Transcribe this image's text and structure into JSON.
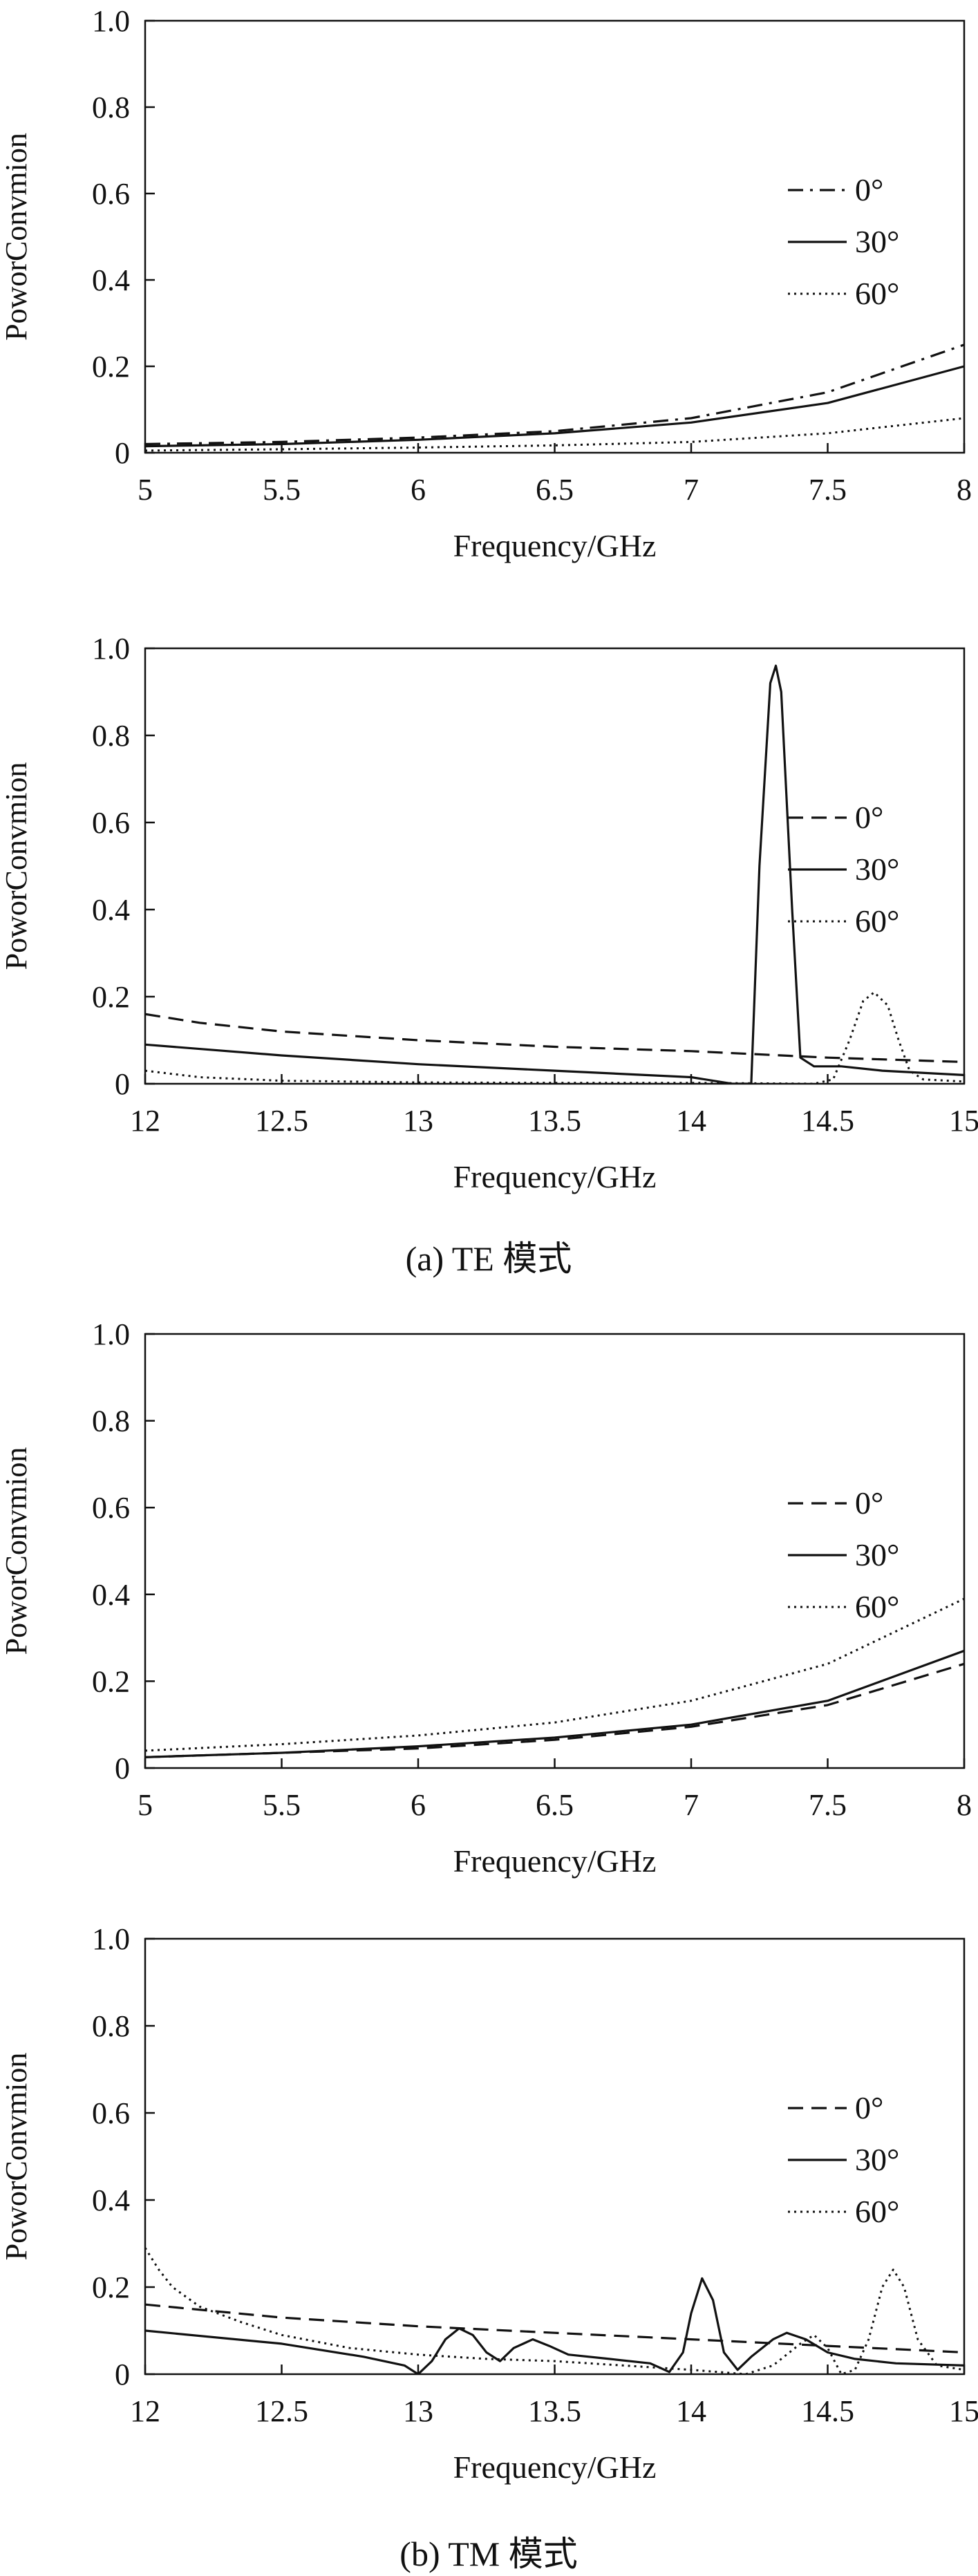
{
  "colors": {
    "line": "#111111",
    "frame": "#111111",
    "background": "#ffffff"
  },
  "captions": {
    "a": "(a) TE 模式",
    "b": "(b) TM 模式"
  },
  "chart_data": [
    {
      "type": "line",
      "xlabel": "Frequency/GHz",
      "ylabel": "PoworConvmion",
      "xlim": [
        5,
        8
      ],
      "ylim": [
        0,
        1
      ],
      "xticks": [
        "5",
        "5.5",
        "6",
        "6.5",
        "7",
        "7.5",
        "8"
      ],
      "yticks": [
        "0",
        "0.2",
        "0.4",
        "0.6",
        "0.8",
        "1.0"
      ],
      "legend_position": "right-middle",
      "grid": false,
      "series": [
        {
          "name": "0°",
          "style": "dashdot",
          "points": [
            [
              5,
              0.02
            ],
            [
              5.5,
              0.025
            ],
            [
              6,
              0.035
            ],
            [
              6.5,
              0.05
            ],
            [
              7,
              0.08
            ],
            [
              7.5,
              0.14
            ],
            [
              8,
              0.25
            ]
          ]
        },
        {
          "name": "30°",
          "style": "solid",
          "points": [
            [
              5,
              0.015
            ],
            [
              5.5,
              0.02
            ],
            [
              6,
              0.03
            ],
            [
              6.5,
              0.045
            ],
            [
              7,
              0.07
            ],
            [
              7.5,
              0.115
            ],
            [
              8,
              0.2
            ]
          ]
        },
        {
          "name": "60°",
          "style": "dotted",
          "points": [
            [
              5,
              0.005
            ],
            [
              5.5,
              0.008
            ],
            [
              6,
              0.012
            ],
            [
              6.5,
              0.017
            ],
            [
              7,
              0.025
            ],
            [
              7.5,
              0.045
            ],
            [
              8,
              0.08
            ]
          ]
        }
      ]
    },
    {
      "type": "line",
      "xlabel": "Frequency/GHz",
      "ylabel": "PoworConvmion",
      "xlim": [
        12,
        15
      ],
      "ylim": [
        0,
        1
      ],
      "xticks": [
        "12",
        "12.5",
        "13",
        "13.5",
        "14",
        "14.5",
        "15"
      ],
      "yticks": [
        "0",
        "0.2",
        "0.4",
        "0.6",
        "0.8",
        "1.0"
      ],
      "legend_position": "right-middle",
      "grid": false,
      "series": [
        {
          "name": "0°",
          "style": "dashed",
          "points": [
            [
              12,
              0.16
            ],
            [
              12.2,
              0.14
            ],
            [
              12.5,
              0.12
            ],
            [
              13,
              0.1
            ],
            [
              13.5,
              0.085
            ],
            [
              14,
              0.075
            ],
            [
              14.5,
              0.06
            ],
            [
              15,
              0.05
            ]
          ]
        },
        {
          "name": "30°",
          "style": "solid",
          "points": [
            [
              12,
              0.09
            ],
            [
              12.5,
              0.065
            ],
            [
              13,
              0.045
            ],
            [
              13.5,
              0.03
            ],
            [
              14,
              0.015
            ],
            [
              14.15,
              0.0
            ],
            [
              14.22,
              0.0
            ],
            [
              14.25,
              0.5
            ],
            [
              14.29,
              0.92
            ],
            [
              14.31,
              0.96
            ],
            [
              14.33,
              0.9
            ],
            [
              14.37,
              0.4
            ],
            [
              14.4,
              0.06
            ],
            [
              14.45,
              0.04
            ],
            [
              14.55,
              0.04
            ],
            [
              14.7,
              0.03
            ],
            [
              15,
              0.02
            ]
          ]
        },
        {
          "name": "60°",
          "style": "dotted",
          "points": [
            [
              12,
              0.03
            ],
            [
              12.2,
              0.015
            ],
            [
              12.5,
              0.007
            ],
            [
              13,
              0.003
            ],
            [
              13.5,
              0.002
            ],
            [
              14,
              0.002
            ],
            [
              14.45,
              0.0
            ],
            [
              14.52,
              0.01
            ],
            [
              14.58,
              0.1
            ],
            [
              14.63,
              0.19
            ],
            [
              14.67,
              0.21
            ],
            [
              14.72,
              0.18
            ],
            [
              14.76,
              0.1
            ],
            [
              14.8,
              0.03
            ],
            [
              14.85,
              0.01
            ],
            [
              15,
              0.005
            ]
          ]
        }
      ]
    },
    {
      "type": "line",
      "xlabel": "Frequency/GHz",
      "ylabel": "PoworConvmion",
      "xlim": [
        5,
        8
      ],
      "ylim": [
        0,
        1
      ],
      "xticks": [
        "5",
        "5.5",
        "6",
        "6.5",
        "7",
        "7.5",
        "8"
      ],
      "yticks": [
        "0",
        "0.2",
        "0.4",
        "0.6",
        "0.8",
        "1.0"
      ],
      "legend_position": "right-middle",
      "grid": false,
      "series": [
        {
          "name": "0°",
          "style": "dashed",
          "points": [
            [
              5,
              0.025
            ],
            [
              5.5,
              0.035
            ],
            [
              6,
              0.045
            ],
            [
              6.5,
              0.065
            ],
            [
              7,
              0.095
            ],
            [
              7.5,
              0.145
            ],
            [
              8,
              0.24
            ]
          ]
        },
        {
          "name": "30°",
          "style": "solid",
          "points": [
            [
              5,
              0.025
            ],
            [
              5.5,
              0.035
            ],
            [
              6,
              0.05
            ],
            [
              6.5,
              0.07
            ],
            [
              7,
              0.1
            ],
            [
              7.5,
              0.155
            ],
            [
              8,
              0.27
            ]
          ]
        },
        {
          "name": "60°",
          "style": "dotted",
          "points": [
            [
              5,
              0.04
            ],
            [
              5.5,
              0.055
            ],
            [
              6,
              0.075
            ],
            [
              6.5,
              0.105
            ],
            [
              7,
              0.155
            ],
            [
              7.5,
              0.24
            ],
            [
              8,
              0.39
            ]
          ]
        }
      ]
    },
    {
      "type": "line",
      "xlabel": "Frequency/GHz",
      "ylabel": "PoworConvmion",
      "xlim": [
        12,
        15
      ],
      "ylim": [
        0,
        1
      ],
      "xticks": [
        "12",
        "12.5",
        "13",
        "13.5",
        "14",
        "14.5",
        "15"
      ],
      "yticks": [
        "0",
        "0.2",
        "0.4",
        "0.6",
        "0.8",
        "1.0"
      ],
      "legend_position": "right-middle",
      "grid": false,
      "series": [
        {
          "name": "0°",
          "style": "dashed",
          "points": [
            [
              12,
              0.16
            ],
            [
              12.5,
              0.13
            ],
            [
              13,
              0.11
            ],
            [
              13.5,
              0.095
            ],
            [
              14,
              0.08
            ],
            [
              14.5,
              0.065
            ],
            [
              15,
              0.05
            ]
          ]
        },
        {
          "name": "30°",
          "style": "solid",
          "points": [
            [
              12,
              0.1
            ],
            [
              12.5,
              0.07
            ],
            [
              12.8,
              0.04
            ],
            [
              12.95,
              0.02
            ],
            [
              13.0,
              0.0
            ],
            [
              13.05,
              0.03
            ],
            [
              13.1,
              0.08
            ],
            [
              13.15,
              0.105
            ],
            [
              13.2,
              0.09
            ],
            [
              13.25,
              0.05
            ],
            [
              13.3,
              0.03
            ],
            [
              13.35,
              0.06
            ],
            [
              13.42,
              0.08
            ],
            [
              13.48,
              0.065
            ],
            [
              13.55,
              0.045
            ],
            [
              13.7,
              0.035
            ],
            [
              13.85,
              0.025
            ],
            [
              13.92,
              0.005
            ],
            [
              13.97,
              0.05
            ],
            [
              14.0,
              0.14
            ],
            [
              14.04,
              0.22
            ],
            [
              14.08,
              0.17
            ],
            [
              14.12,
              0.05
            ],
            [
              14.17,
              0.01
            ],
            [
              14.22,
              0.04
            ],
            [
              14.3,
              0.08
            ],
            [
              14.35,
              0.095
            ],
            [
              14.42,
              0.08
            ],
            [
              14.5,
              0.05
            ],
            [
              14.6,
              0.035
            ],
            [
              14.75,
              0.025
            ],
            [
              15,
              0.02
            ]
          ]
        },
        {
          "name": "60°",
          "style": "dotted",
          "points": [
            [
              12,
              0.29
            ],
            [
              12.05,
              0.24
            ],
            [
              12.1,
              0.2
            ],
            [
              12.2,
              0.155
            ],
            [
              12.35,
              0.12
            ],
            [
              12.5,
              0.09
            ],
            [
              12.75,
              0.06
            ],
            [
              13,
              0.045
            ],
            [
              13.25,
              0.035
            ],
            [
              13.5,
              0.03
            ],
            [
              13.75,
              0.02
            ],
            [
              14,
              0.01
            ],
            [
              14.2,
              0.0
            ],
            [
              14.3,
              0.02
            ],
            [
              14.4,
              0.07
            ],
            [
              14.45,
              0.09
            ],
            [
              14.5,
              0.06
            ],
            [
              14.55,
              0.0
            ],
            [
              14.6,
              0.01
            ],
            [
              14.65,
              0.08
            ],
            [
              14.7,
              0.2
            ],
            [
              14.74,
              0.24
            ],
            [
              14.78,
              0.2
            ],
            [
              14.83,
              0.08
            ],
            [
              14.9,
              0.02
            ],
            [
              15,
              0.01
            ]
          ]
        }
      ]
    }
  ]
}
